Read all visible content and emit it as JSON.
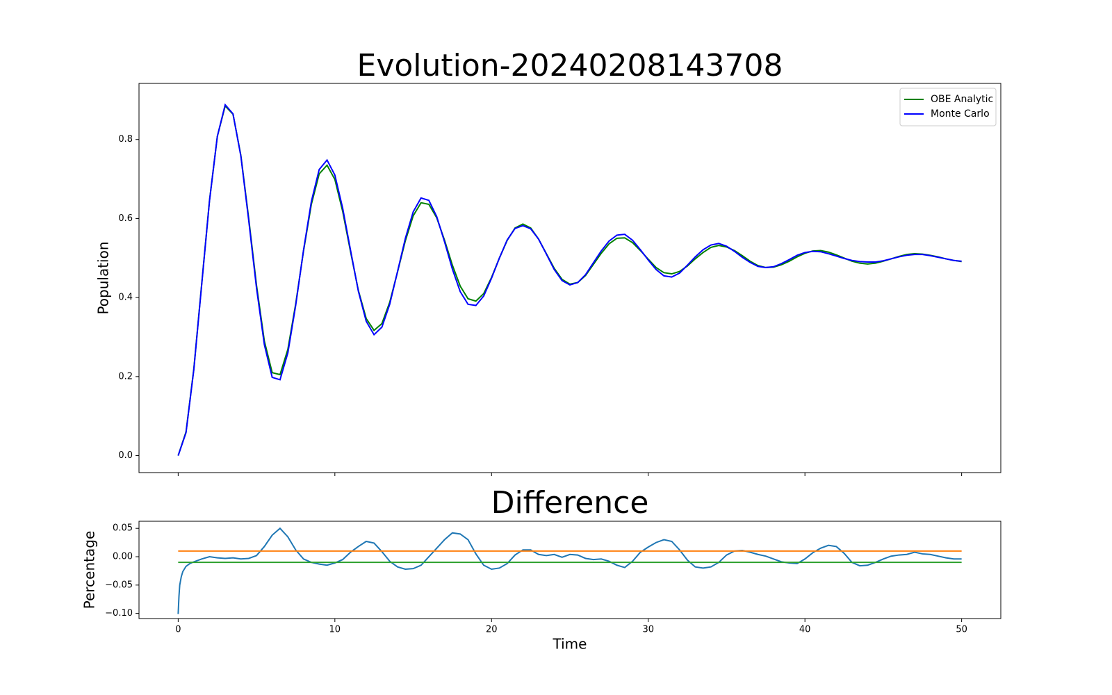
{
  "chart_data": [
    {
      "type": "line",
      "title": "Evolution-20240208143708",
      "ylabel": "Population",
      "x": [
        0,
        0.5,
        1,
        1.5,
        2,
        2.5,
        3,
        3.5,
        4,
        4.5,
        5,
        5.5,
        6,
        6.5,
        7,
        7.5,
        8,
        8.5,
        9,
        9.5,
        10,
        10.5,
        11,
        11.5,
        12,
        12.5,
        13,
        13.5,
        14,
        14.5,
        15,
        15.5,
        16,
        16.5,
        17,
        17.5,
        18,
        18.5,
        19,
        19.5,
        20,
        20.5,
        21,
        21.5,
        22,
        22.5,
        23,
        23.5,
        24,
        24.5,
        25,
        25.5,
        26,
        26.5,
        27,
        27.5,
        28,
        28.5,
        29,
        29.5,
        30,
        30.5,
        31,
        31.5,
        32,
        32.5,
        33,
        33.5,
        34,
        34.5,
        35,
        35.5,
        36,
        36.5,
        37,
        37.5,
        38,
        38.5,
        39,
        39.5,
        40,
        40.5,
        41,
        41.5,
        42,
        42.5,
        43,
        43.5,
        44,
        44.5,
        45,
        45.5,
        46,
        46.5,
        47,
        47.5,
        48,
        48.5,
        49,
        49.5,
        50
      ],
      "series": [
        {
          "name": "OBE Analytic",
          "color": "#008000",
          "values": [
            0,
            0.06,
            0.22,
            0.434,
            0.646,
            0.808,
            0.885,
            0.864,
            0.76,
            0.601,
            0.431,
            0.29,
            0.21,
            0.205,
            0.269,
            0.384,
            0.518,
            0.636,
            0.713,
            0.735,
            0.699,
            0.618,
            0.516,
            0.418,
            0.347,
            0.317,
            0.334,
            0.388,
            0.465,
            0.544,
            0.607,
            0.64,
            0.636,
            0.602,
            0.545,
            0.482,
            0.429,
            0.397,
            0.391,
            0.41,
            0.451,
            0.5,
            0.545,
            0.576,
            0.586,
            0.576,
            0.548,
            0.511,
            0.474,
            0.446,
            0.434,
            0.438,
            0.456,
            0.484,
            0.512,
            0.536,
            0.55,
            0.551,
            0.539,
            0.519,
            0.497,
            0.476,
            0.463,
            0.46,
            0.466,
            0.48,
            0.498,
            0.514,
            0.527,
            0.532,
            0.528,
            0.519,
            0.506,
            0.492,
            0.481,
            0.476,
            0.477,
            0.483,
            0.492,
            0.503,
            0.512,
            0.518,
            0.519,
            0.515,
            0.508,
            0.5,
            0.492,
            0.487,
            0.485,
            0.487,
            0.492,
            0.498,
            0.504,
            0.509,
            0.511,
            0.51,
            0.507,
            0.503,
            0.498,
            0.494,
            0.491
          ]
        },
        {
          "name": "Monte Carlo",
          "color": "#0000ff",
          "values": [
            0,
            0.058,
            0.218,
            0.432,
            0.645,
            0.808,
            0.888,
            0.865,
            0.758,
            0.596,
            0.424,
            0.281,
            0.198,
            0.192,
            0.26,
            0.38,
            0.52,
            0.643,
            0.724,
            0.748,
            0.71,
            0.626,
            0.52,
            0.416,
            0.34,
            0.306,
            0.325,
            0.383,
            0.466,
            0.55,
            0.617,
            0.652,
            0.646,
            0.605,
            0.541,
            0.472,
            0.415,
            0.383,
            0.38,
            0.404,
            0.449,
            0.5,
            0.546,
            0.575,
            0.582,
            0.574,
            0.548,
            0.51,
            0.471,
            0.443,
            0.432,
            0.438,
            0.458,
            0.488,
            0.518,
            0.543,
            0.558,
            0.56,
            0.545,
            0.521,
            0.495,
            0.471,
            0.455,
            0.452,
            0.462,
            0.482,
            0.503,
            0.521,
            0.533,
            0.537,
            0.53,
            0.517,
            0.502,
            0.489,
            0.479,
            0.476,
            0.478,
            0.486,
            0.496,
            0.507,
            0.514,
            0.517,
            0.516,
            0.511,
            0.505,
            0.499,
            0.494,
            0.491,
            0.49,
            0.49,
            0.493,
            0.498,
            0.503,
            0.507,
            0.509,
            0.509,
            0.506,
            0.502,
            0.498,
            0.494,
            0.492
          ]
        }
      ],
      "xlim": [
        -2.5,
        52.5
      ],
      "xticks": [
        0,
        10,
        20,
        30,
        40,
        50
      ],
      "ylim": [
        -0.043,
        0.942
      ],
      "yticks": [
        {
          "value": 0,
          "label": "0.0"
        },
        0.2,
        0.4,
        0.6,
        0.8
      ],
      "legend": "upper right",
      "grid": false
    },
    {
      "type": "line",
      "title": "Difference",
      "xlabel": "Time",
      "ylabel": "Percentage",
      "series": [
        {
          "color": "#1f77b4",
          "x": [
            0,
            0.05,
            0.1,
            0.2,
            0.3,
            0.5,
            0.75,
            1,
            1.5,
            2,
            2.5,
            3,
            3.5,
            4,
            4.5,
            5,
            5.5,
            6,
            6.5,
            7,
            7.5,
            8,
            8.5,
            9,
            9.5,
            10,
            10.5,
            11,
            11.5,
            12,
            12.5,
            13,
            13.5,
            14,
            14.5,
            15,
            15.5,
            16,
            16.5,
            17,
            17.5,
            18,
            18.5,
            19,
            19.5,
            20,
            20.5,
            21,
            21.5,
            22,
            22.5,
            23,
            23.5,
            24,
            24.5,
            25,
            25.5,
            26,
            26.5,
            27,
            27.5,
            28,
            28.5,
            29,
            29.5,
            30,
            30.5,
            31,
            31.5,
            32,
            32.5,
            33,
            33.5,
            34,
            34.5,
            35,
            35.5,
            36,
            36.5,
            37,
            37.5,
            38,
            38.5,
            39,
            39.5,
            40,
            40.5,
            41,
            41.5,
            42,
            42.5,
            43,
            43.5,
            44,
            44.5,
            45,
            45.5,
            46,
            46.5,
            47,
            47.5,
            48,
            48.5,
            49,
            49.5,
            50
          ],
          "values": [
            -0.101,
            -0.07,
            -0.05,
            -0.035,
            -0.026,
            -0.017,
            -0.012,
            -0.009,
            -0.004,
            0,
            -0.002,
            -0.003,
            -0.002,
            -0.004,
            -0.003,
            0.002,
            0.018,
            0.038,
            0.05,
            0.035,
            0.012,
            -0.004,
            -0.01,
            -0.013,
            -0.015,
            -0.011,
            -0.005,
            0.008,
            0.018,
            0.027,
            0.024,
            0.009,
            -0.008,
            -0.018,
            -0.022,
            -0.021,
            -0.015,
            0,
            0.015,
            0.03,
            0.042,
            0.04,
            0.03,
            0.005,
            -0.015,
            -0.022,
            -0.02,
            -0.012,
            0.003,
            0.012,
            0.012,
            0.004,
            0.002,
            0.004,
            -0.001,
            0.004,
            0.003,
            -0.003,
            -0.005,
            -0.004,
            -0.008,
            -0.015,
            -0.019,
            -0.008,
            0.008,
            0.017,
            0.025,
            0.03,
            0.027,
            0.012,
            -0.006,
            -0.018,
            -0.02,
            -0.018,
            -0.01,
            0.003,
            0.01,
            0.011,
            0.008,
            0.004,
            0.001,
            -0.004,
            -0.009,
            -0.011,
            -0.012,
            -0.004,
            0.007,
            0.015,
            0.02,
            0.018,
            0.006,
            -0.01,
            -0.016,
            -0.015,
            -0.01,
            -0.004,
            0.001,
            0.003,
            0.004,
            0.008,
            0.005,
            0.004,
            0.001,
            -0.002,
            -0.004,
            -0.004
          ]
        },
        {
          "color": "#ff7f0e",
          "x": [
            0,
            50
          ],
          "values": [
            0.01,
            0.01
          ]
        },
        {
          "color": "#2ca02c",
          "x": [
            0,
            50
          ],
          "values": [
            -0.01,
            -0.01
          ]
        }
      ],
      "xlim": [
        -2.5,
        52.5
      ],
      "xticks": [
        0,
        10,
        20,
        30,
        40,
        50
      ],
      "ylim": [
        -0.109,
        0.0625
      ],
      "yticks": [
        0.05,
        {
          "value": 0,
          "label": "0.00"
        },
        {
          "value": -0.05,
          "label": "−0.05"
        },
        {
          "value": -0.1,
          "label": "−0.10"
        }
      ],
      "grid": false
    }
  ]
}
